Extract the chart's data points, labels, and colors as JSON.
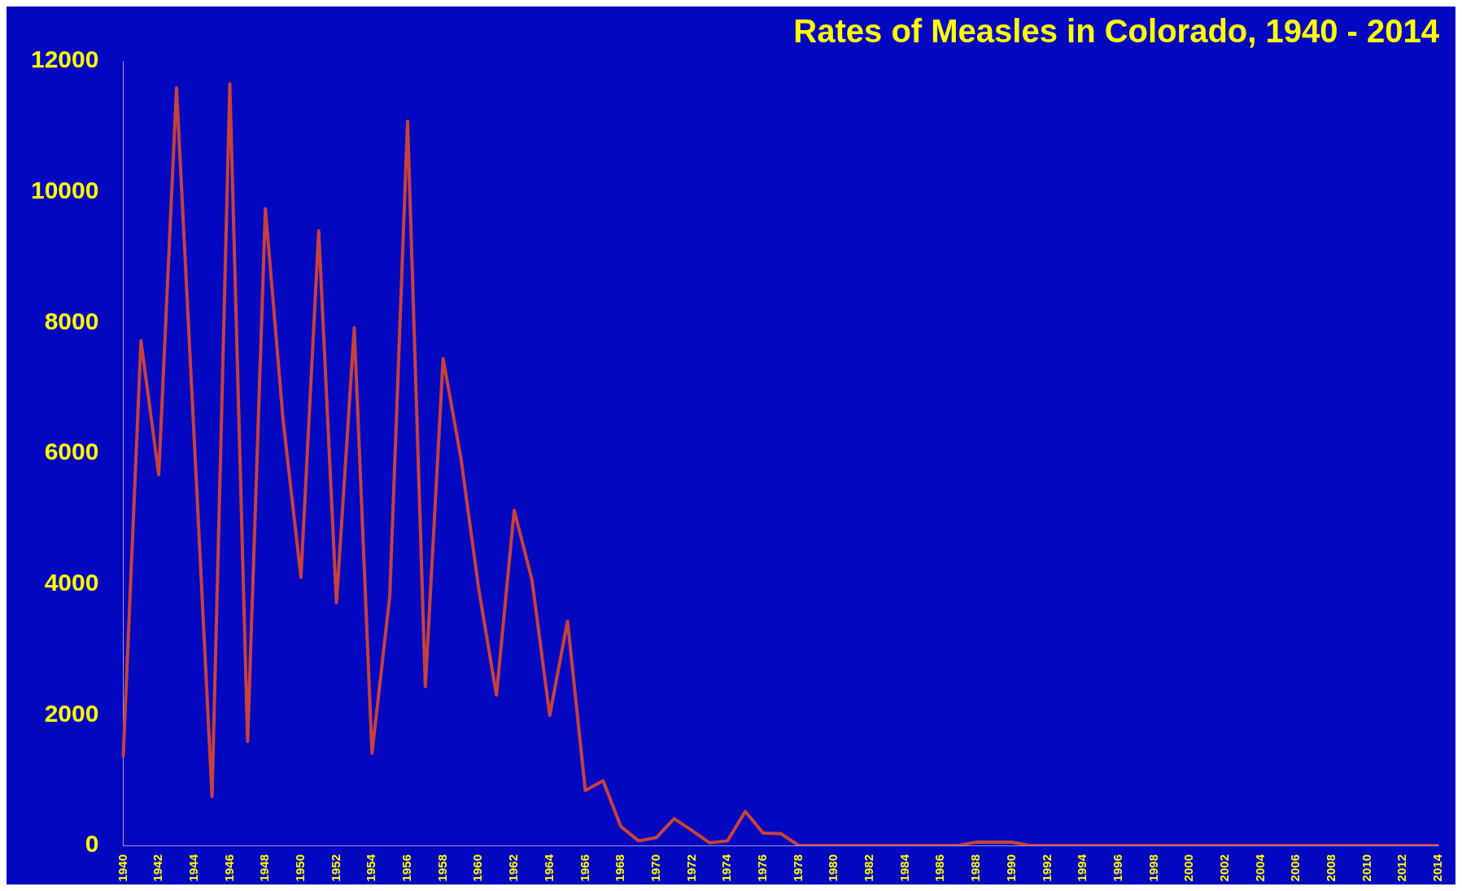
{
  "chart_data": {
    "type": "line",
    "title": "Rates of Measles in Colorado, 1940 - 2014",
    "categories": [
      "1940",
      null,
      "1942",
      null,
      "1944",
      null,
      "1946",
      null,
      "1948",
      null,
      "1950",
      null,
      "1952",
      null,
      "1954",
      null,
      "1956",
      null,
      "1958",
      null,
      "1960",
      null,
      "1962",
      null,
      "1964",
      null,
      "1966",
      null,
      "1968",
      null,
      "1970",
      null,
      "1972",
      null,
      "1974",
      null,
      "1976",
      null,
      "1978",
      null,
      "1980",
      null,
      "1982",
      null,
      "1984",
      null,
      "1986",
      null,
      "1988",
      null,
      "1990",
      null,
      "1992",
      null,
      "1994",
      null,
      "1996",
      null,
      "1998",
      null,
      "2000",
      null,
      "2002",
      null,
      "2004",
      null,
      "2006",
      null,
      "2008",
      null,
      "2010",
      null,
      "2012",
      null,
      "2014"
    ],
    "series": [
      {
        "color": "#c8413a",
        "values": [
          1350,
          7720,
          5670,
          11590,
          6200,
          750,
          11650,
          1590,
          9740,
          6500,
          4100,
          9400,
          3710,
          7920,
          1410,
          3820,
          11080,
          2430,
          7450,
          5930,
          3930,
          2300,
          5130,
          4060,
          1990,
          3430,
          840,
          990,
          290,
          70,
          120,
          410,
          230,
          40,
          70,
          520,
          190,
          180,
          0,
          0,
          0,
          0,
          0,
          0,
          0,
          0,
          0,
          0,
          50,
          50,
          50,
          0,
          0,
          0,
          0,
          0,
          0,
          0,
          0,
          0,
          0,
          0,
          0,
          0,
          0,
          0,
          0,
          0,
          0,
          0,
          0,
          0,
          0,
          0,
          0
        ]
      }
    ],
    "ylim": [
      0,
      12000
    ],
    "yticks": [
      0,
      2000,
      4000,
      6000,
      8000,
      10000,
      12000
    ],
    "grid": false,
    "legend": false,
    "marker": "none",
    "line_style": "solid"
  }
}
